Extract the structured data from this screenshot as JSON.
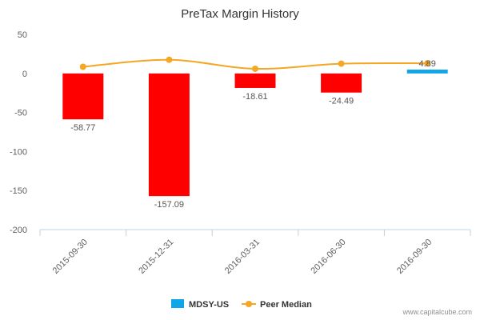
{
  "chart_data": {
    "type": "bar",
    "title": "PreTax Margin History",
    "categories": [
      "2015-09-30",
      "2015-12-31",
      "2016-03-31",
      "2016-06-30",
      "2016-09-30"
    ],
    "series": [
      {
        "name": "MDSY-US",
        "kind": "bar",
        "values": [
          -58.77,
          -157.09,
          -18.61,
          -24.49,
          4.89
        ],
        "labels": [
          "-58.77",
          "-157.09",
          "-18.61",
          "-24.49",
          "4.89"
        ],
        "colors": [
          "#ff0000",
          "#ff0000",
          "#ff0000",
          "#ff0000",
          "#0ea5e9"
        ]
      },
      {
        "name": "Peer Median",
        "kind": "line",
        "values": [
          8.5,
          17.5,
          6.0,
          12.5,
          13.0
        ],
        "color": "#f5a623"
      }
    ],
    "ylim": [
      -200,
      50
    ],
    "yticks": [
      50,
      0,
      -50,
      -100,
      -150,
      -200
    ],
    "grid": false,
    "legend_position": "bottom-center"
  },
  "credit": "www.capitalcube.com"
}
